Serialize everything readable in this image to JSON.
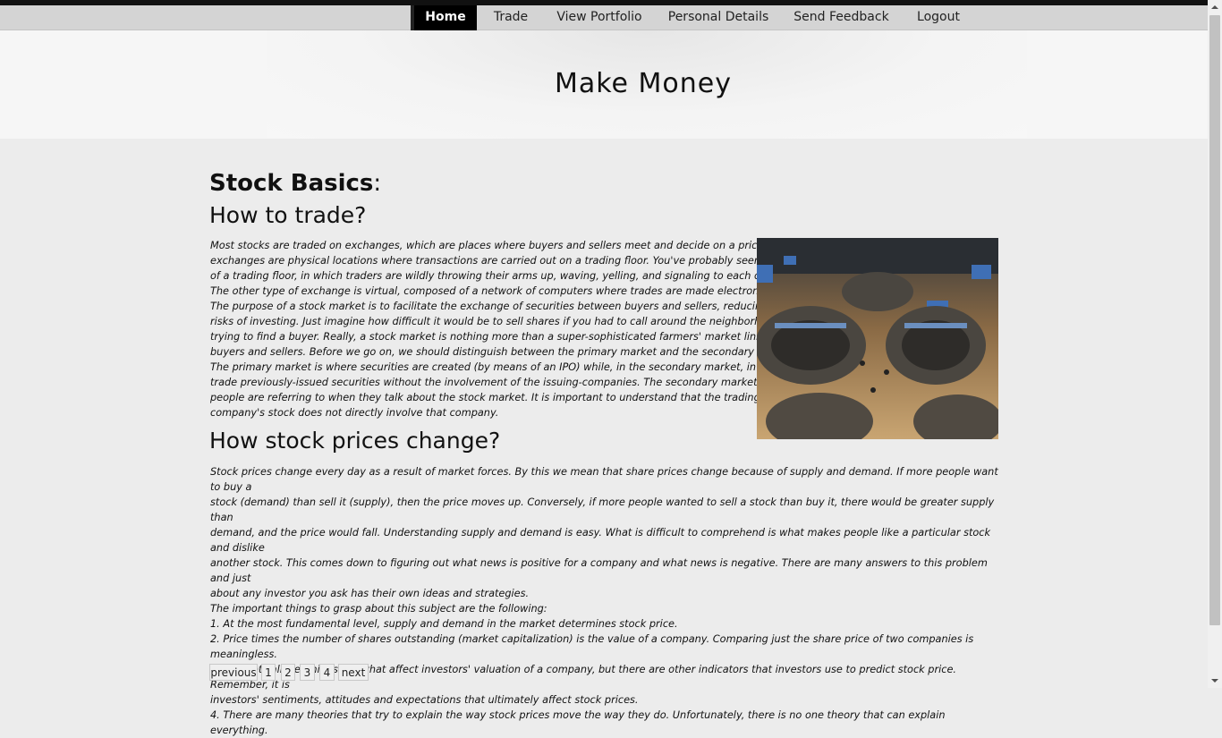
{
  "nav": {
    "items": [
      {
        "label": "Home",
        "active": true
      },
      {
        "label": "Trade",
        "active": false
      },
      {
        "label": "View Portfolio",
        "active": false
      },
      {
        "label": "Personal Details",
        "active": false
      },
      {
        "label": "Send Feedback",
        "active": false
      },
      {
        "label": "Logout",
        "active": false
      }
    ]
  },
  "header": {
    "title": "Make Money"
  },
  "main": {
    "heading": "Stock Basics",
    "heading_colon": ":",
    "section1": {
      "title": "How to trade?",
      "lines": [
        "Most stocks are traded on exchanges, which are places where buyers and sellers meet and decide on a price. Some",
        "exchanges are physical locations where transactions are carried out on a trading floor. You've probably seen pictures",
        "of a trading floor, in which traders are wildly throwing their arms up, waving, yelling, and signaling to each other.",
        "The other type of exchange is virtual, composed of a network of computers where trades are made electronically.",
        "The purpose of a stock market is to facilitate the exchange of securities between buyers and sellers, reducing the",
        "risks of investing. Just imagine how difficult it would be to sell shares if you had to call around the neighborhood",
        "trying to find a buyer. Really, a stock market is nothing more than a super-sophisticated farmers' market linking",
        "buyers and sellers. Before we go on, we should distinguish between the primary market and the secondary market.",
        "The primary market is where securities are created (by means of an IPO) while, in the secondary market, investors",
        "trade previously-issued securities without the involvement of the issuing-companies. The secondary market is what",
        "people are referring to when they talk about the stock market. It is important to understand that the trading of a",
        "company's stock does not directly involve that company."
      ],
      "image": {
        "icon": "trading-floor-photo"
      }
    },
    "section2": {
      "title": "How stock prices change?",
      "lines": [
        "Stock prices change every day as a result of market forces. By this we mean that share prices change because of supply and demand. If more people want to buy a",
        "stock (demand) than sell it (supply), then the price moves up. Conversely, if more people wanted to sell a stock than buy it, there would be greater supply than",
        "demand, and the price would fall. Understanding supply and demand is easy. What is difficult to comprehend is what makes people like a particular stock and dislike",
        "another stock. This comes down to figuring out what news is positive for a company and what news is negative. There are many answers to this problem and just",
        "about any investor you ask has their own ideas and strategies.",
        "The important things to grasp about this subject are the following:",
        "1. At the most fundamental level, supply and demand in the market determines stock price.",
        "2. Price times the number of shares outstanding (market capitalization) is the value of a company. Comparing just the share price of two companies is meaningless.",
        "3. Theoretically, earnings are what affect investors' valuation of a company, but there are other indicators that investors use to predict stock price. Remember, it is",
        "investors' sentiments, attitudes and expectations that ultimately affect stock prices.",
        "4. There are many theories that try to explain the way stock prices move the way they do. Unfortunately, there is no one theory that can explain everything."
      ]
    }
  },
  "pagination": {
    "previous": "previous",
    "pages": [
      "1",
      "2",
      "3",
      "4"
    ],
    "next": "next"
  },
  "colors": {
    "nav_bg": "#d4d4d4",
    "nav_active_bg": "#000000",
    "page_bg": "#ececec",
    "header_bg": "#f6f6f6"
  }
}
